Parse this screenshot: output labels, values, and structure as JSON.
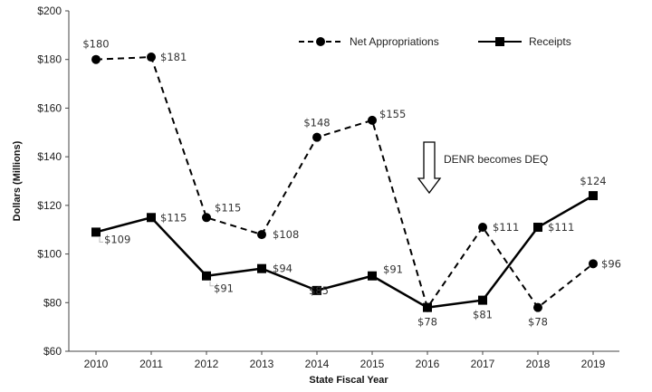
{
  "chart_data": {
    "type": "line",
    "xlabel": "State Fiscal Year",
    "ylabel": "Dollars (Millions)",
    "x": [
      "2010",
      "2011",
      "2012",
      "2013",
      "2014",
      "2015",
      "2016",
      "2017",
      "2018",
      "2019"
    ],
    "ylim": [
      60,
      200
    ],
    "yticks": [
      60,
      80,
      100,
      120,
      140,
      160,
      180,
      200
    ],
    "ytick_labels": [
      "$60",
      "$80",
      "$100",
      "$120",
      "$140",
      "$160",
      "$180",
      "$200"
    ],
    "grid": false,
    "legend_position": "top-right",
    "series": [
      {
        "name": "Net Appropriations",
        "style": "dashed",
        "marker": "circle",
        "color": "#000000",
        "values": [
          180,
          181,
          115,
          108,
          148,
          155,
          78,
          111,
          78,
          96
        ],
        "labels": [
          "$180",
          "$181",
          "$115",
          "$108",
          "$148",
          "$155",
          "",
          "$111",
          "$78",
          "$96"
        ]
      },
      {
        "name": "Receipts",
        "style": "solid",
        "marker": "square",
        "color": "#000000",
        "values": [
          109,
          115,
          91,
          94,
          85,
          91,
          78,
          81,
          111,
          124
        ],
        "labels": [
          "$109",
          "$115",
          "$91",
          "$94",
          "$85",
          "$91",
          "$78",
          "$81",
          "$111",
          "$124"
        ]
      }
    ],
    "annotations": [
      {
        "text": "DENR becomes DEQ",
        "arrow": "down"
      }
    ]
  }
}
